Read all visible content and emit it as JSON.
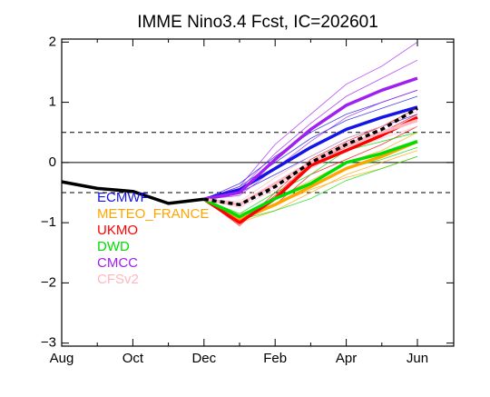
{
  "chart_data": {
    "type": "line",
    "title": "IMME Nino3.4 Fcst, IC=202601",
    "categories": [
      "Aug",
      null,
      "Oct",
      null,
      "Dec",
      null,
      "Feb",
      null,
      "Apr",
      null,
      "Jun"
    ],
    "ylim": [
      -3.05,
      2.05
    ],
    "yticks": [
      {
        "value": -3,
        "label": "−3"
      },
      {
        "value": -2,
        "label": "−2"
      },
      {
        "value": -1,
        "label": "−1"
      },
      0,
      1,
      2
    ],
    "reference_lines": [
      {
        "value": 0,
        "style": "solid"
      },
      {
        "value": 0.5,
        "style": "dashed"
      },
      {
        "value": -0.5,
        "style": "dashed"
      }
    ],
    "series": [
      {
        "name": "ECMWF",
        "color": "#1414e6",
        "values": [
          null,
          null,
          null,
          null,
          -0.61,
          -0.45,
          -0.1,
          0.25,
          0.55,
          0.75,
          0.92
        ],
        "members": [
          [
            null,
            null,
            null,
            null,
            -0.61,
            -0.4,
            0.0,
            0.4,
            0.7,
            0.9,
            1.1
          ],
          [
            null,
            null,
            null,
            null,
            -0.61,
            -0.5,
            -0.2,
            0.1,
            0.4,
            0.6,
            0.8
          ],
          [
            null,
            null,
            null,
            null,
            -0.61,
            -0.35,
            0.1,
            0.5,
            0.8,
            1.0,
            1.2
          ]
        ]
      },
      {
        "name": "METEO_FRANCE",
        "color": "#ffa500",
        "values": [
          null,
          null,
          null,
          null,
          -0.61,
          -0.95,
          -0.7,
          -0.4,
          -0.1,
          0.1,
          0.35
        ],
        "members": [
          [
            null,
            null,
            null,
            null,
            -0.61,
            -1.0,
            -0.8,
            -0.5,
            -0.2,
            0.0,
            0.2
          ],
          [
            null,
            null,
            null,
            null,
            -0.61,
            -0.9,
            -0.6,
            -0.3,
            0.0,
            0.2,
            0.5
          ],
          [
            null,
            null,
            null,
            null,
            -0.61,
            -0.85,
            -0.7,
            -0.45,
            -0.25,
            -0.1,
            0.1
          ]
        ]
      },
      {
        "name": "UKMO",
        "color": "#ff0000",
        "values": [
          null,
          null,
          null,
          null,
          -0.61,
          -1.0,
          -0.6,
          -0.05,
          0.2,
          0.45,
          0.75
        ],
        "members": [
          [
            null,
            null,
            null,
            null,
            -0.61,
            -1.05,
            -0.5,
            0.05,
            0.35,
            0.6,
            0.9
          ],
          [
            null,
            null,
            null,
            null,
            -0.61,
            -0.95,
            -0.7,
            -0.2,
            0.05,
            0.3,
            0.6
          ],
          [
            null,
            null,
            null,
            null,
            -0.61,
            -1.0,
            -0.55,
            0.0,
            0.25,
            0.5,
            0.8
          ]
        ]
      },
      {
        "name": "DWD",
        "color": "#00dd00",
        "values": [
          null,
          null,
          null,
          null,
          -0.61,
          -0.9,
          -0.6,
          -0.35,
          0.0,
          0.15,
          0.35
        ],
        "members": [
          [
            null,
            null,
            null,
            null,
            -0.61,
            -0.95,
            -0.8,
            -0.6,
            -0.3,
            -0.1,
            0.1
          ],
          [
            null,
            null,
            null,
            null,
            -0.61,
            -0.85,
            -0.5,
            -0.2,
            0.2,
            0.35,
            0.5
          ],
          [
            null,
            null,
            null,
            null,
            -0.61,
            -0.9,
            -0.7,
            -0.4,
            -0.1,
            0.05,
            0.25
          ]
        ]
      },
      {
        "name": "CMCC",
        "color": "#a020f0",
        "values": [
          null,
          null,
          null,
          null,
          -0.61,
          -0.5,
          0.05,
          0.55,
          0.95,
          1.2,
          1.4
        ],
        "members": [
          [
            null,
            null,
            null,
            null,
            -0.61,
            -0.4,
            0.3,
            0.8,
            1.3,
            1.6,
            2.0
          ],
          [
            null,
            null,
            null,
            null,
            -0.61,
            -0.55,
            -0.1,
            0.35,
            0.75,
            1.0,
            1.2
          ],
          [
            null,
            null,
            null,
            null,
            -0.61,
            -0.45,
            0.15,
            0.65,
            1.1,
            1.4,
            1.7
          ]
        ]
      },
      {
        "name": "CFSv2",
        "color": "#ffb6c1",
        "values": [
          null,
          null,
          null,
          null,
          -0.61,
          -0.7,
          -0.35,
          0.0,
          0.3,
          0.5,
          0.7
        ],
        "members": [
          [
            null,
            null,
            null,
            null,
            -0.61,
            -0.75,
            -0.45,
            -0.1,
            0.2,
            0.4,
            0.6
          ],
          [
            null,
            null,
            null,
            null,
            -0.61,
            -0.65,
            -0.25,
            0.1,
            0.4,
            0.6,
            0.85
          ],
          [
            null,
            null,
            null,
            null,
            -0.61,
            -0.7,
            -0.4,
            -0.05,
            0.25,
            0.5,
            0.7
          ]
        ]
      },
      {
        "color": "#000000",
        "style": "solid",
        "values": [
          -0.32,
          -0.43,
          -0.48,
          -0.68,
          -0.61,
          null,
          null,
          null,
          null,
          null,
          null
        ]
      },
      {
        "color": "#000000",
        "style": "dashed",
        "values": [
          null,
          null,
          null,
          null,
          -0.61,
          -0.7,
          -0.4,
          0.0,
          0.3,
          0.55,
          0.9
        ]
      }
    ]
  }
}
